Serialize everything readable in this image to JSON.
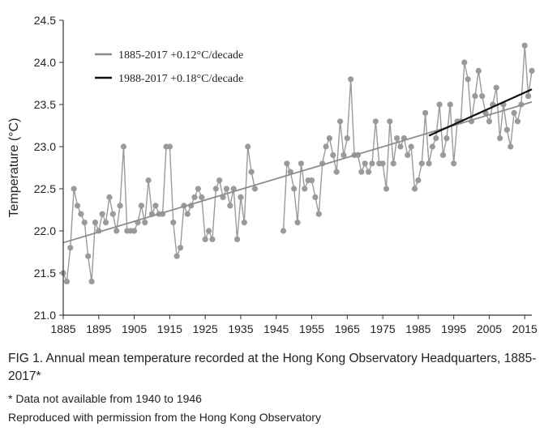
{
  "chart_data": {
    "type": "line",
    "xlabel": "",
    "ylabel": "Temperature (°C)",
    "xlim": [
      1885,
      2017
    ],
    "ylim": [
      21.0,
      24.5
    ],
    "xticks": [
      1885,
      1895,
      1905,
      1915,
      1925,
      1935,
      1945,
      1955,
      1965,
      1975,
      1985,
      1995,
      2005,
      2015
    ],
    "yticks": [
      "21.0",
      "21.5",
      "22.0",
      "22.5",
      "23.0",
      "23.5",
      "24.0",
      "24.5"
    ],
    "grid": false,
    "legend_position": "top-left",
    "colors": {
      "data": "#9a9a9a",
      "trend_long": "#8c8c8c",
      "trend_recent": "#111111",
      "axis": "#333333"
    },
    "series": [
      {
        "name": "1885-2017 +0.12°C/decade",
        "kind": "trend",
        "x": [
          1885,
          2017
        ],
        "y": [
          21.86,
          23.53
        ]
      },
      {
        "name": "1988-2017 +0.18°C/decade",
        "kind": "trend",
        "x": [
          1988,
          2017
        ],
        "y": [
          23.13,
          23.68
        ]
      }
    ],
    "observations": {
      "segments": [
        {
          "x_start": 1885,
          "values": [
            21.5,
            21.4,
            21.8,
            22.5,
            22.3,
            22.2,
            22.1,
            21.7,
            21.4,
            22.1,
            22.0,
            22.2,
            22.1,
            22.4,
            22.2,
            22.0,
            22.3,
            23.0,
            22.0,
            22.0,
            22.0,
            22.1,
            22.3,
            22.1,
            22.6,
            22.2,
            22.3,
            22.2,
            22.2,
            23.0,
            23.0,
            22.1,
            21.7,
            21.8,
            22.3,
            22.2,
            22.3,
            22.4,
            22.5,
            22.4,
            21.9,
            22.0,
            21.9,
            22.5,
            22.6,
            22.4,
            22.5,
            22.3,
            22.5,
            21.9,
            22.4,
            22.1,
            23.0,
            22.7,
            22.5
          ]
        },
        {
          "x_start": 1947,
          "values": [
            22.0,
            22.8,
            22.7,
            22.5,
            22.1,
            22.8,
            22.5,
            22.6,
            22.6,
            22.4,
            22.2,
            22.8,
            23.0,
            23.1,
            22.9,
            22.7,
            23.3,
            22.9,
            23.1,
            23.8,
            22.9,
            22.9,
            22.7,
            22.8,
            22.7,
            22.8,
            23.3,
            22.8,
            22.8,
            22.5,
            23.3,
            22.8,
            23.1,
            23.0,
            23.1,
            22.9,
            23.0,
            22.5,
            22.6,
            22.8,
            23.4,
            22.8,
            23.0,
            23.1,
            23.5,
            22.9,
            23.1,
            23.5,
            22.8,
            23.3,
            23.3,
            24.0,
            23.8,
            23.3,
            23.6,
            23.9,
            23.6,
            23.4,
            23.3,
            23.5,
            23.7,
            23.1,
            23.5,
            23.2,
            23.0,
            23.4,
            23.3,
            23.5,
            24.2,
            23.6,
            23.9
          ]
        }
      ]
    }
  },
  "caption": {
    "title": "FIG 1. Annual mean temperature recorded at the Hong Kong Observatory Headquarters, 1885-2017*",
    "note": "*  Data not available from 1940 to 1946",
    "credit": "Reproduced with permission from the Hong Kong Observatory"
  }
}
